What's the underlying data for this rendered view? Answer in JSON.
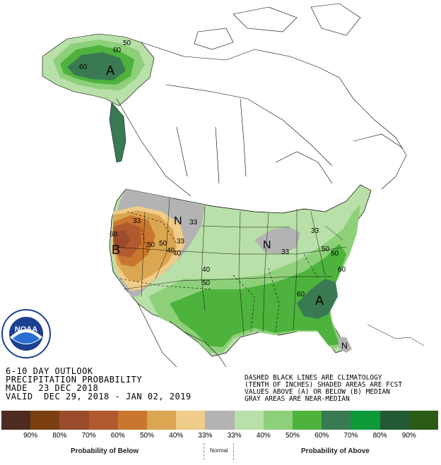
{
  "title_lines": [
    "6-10 DAY OUTLOOK",
    "PRECIPITATION PROBABILITY",
    "MADE  23 DEC 2018",
    "VALID  DEC 29, 2018 - JAN 02, 2019"
  ],
  "note_lines": [
    "DASHED BLACK LINES ARE CLIMATOLOGY",
    "(TENTH OF INCHES) SHADED AREAS ARE FCST",
    "VALUES ABOVE (A) OR BELOW (B) MEDIAN",
    "GRAY AREAS ARE NEAR-MEDIAN"
  ],
  "logo_text": "NOAA",
  "logo_ring_text": "NATIONAL OCEANIC AND ATMOSPHERIC ADMINISTRATION · U.S. DEPARTMENT OF COMMERCE",
  "legend": {
    "colors": [
      "#4e2a20",
      "#7a3f10",
      "#9a4c2c",
      "#b05a2e",
      "#c9762e",
      "#dba652",
      "#f0cc8a",
      "#b3b3b3",
      "#b8e0a8",
      "#8ed07a",
      "#4db33d",
      "#3a7a52",
      "#0e9a38",
      "#235a33",
      "#2a5b16"
    ],
    "tick_labels": [
      "90%",
      "80%",
      "70%",
      "60%",
      "50%",
      "40%",
      "33%",
      "33%",
      "40%",
      "50%",
      "60%",
      "70%",
      "80%",
      "90%"
    ],
    "caption_below": "Probability of Below",
    "caption_normal": "Normal",
    "caption_above": "Probability of Above"
  },
  "map_labels": {
    "alaska_a": "A",
    "west_b": "B",
    "northwest_n": "N",
    "greatlakes_n": "N",
    "southeast_a": "A",
    "florida_n": "N",
    "contours": [
      "50",
      "60",
      "60",
      "40",
      "33",
      "33",
      "40",
      "50",
      "33",
      "50",
      "60",
      "60",
      "50",
      "33",
      "40",
      "50",
      "60",
      "50",
      "33"
    ]
  },
  "colors": {
    "alaska": "#3a7a52",
    "west_dry": "#b05a2e",
    "near_median": "#b3b3b3"
  }
}
